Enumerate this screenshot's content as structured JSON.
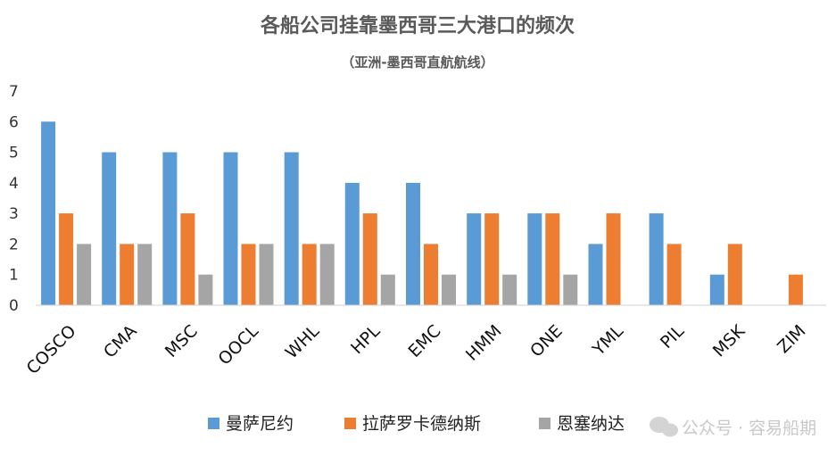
{
  "chart_data": {
    "type": "bar",
    "title": "各船公司挂靠墨西哥三大港口的频次",
    "subtitle": "（亚洲-墨西哥直航航线）",
    "categories": [
      "COSCO",
      "CMA",
      "MSC",
      "OOCL",
      "WHL",
      "HPL",
      "EMC",
      "HMM",
      "ONE",
      "YML",
      "PIL",
      "MSK",
      "ZIM"
    ],
    "series": [
      {
        "name": "曼萨尼约",
        "color": "#5b9bd5",
        "values": [
          6,
          5,
          5,
          5,
          5,
          4,
          4,
          3,
          3,
          2,
          3,
          1,
          0
        ]
      },
      {
        "name": "拉萨罗卡德纳斯",
        "color": "#ed7d31",
        "values": [
          3,
          2,
          3,
          2,
          2,
          3,
          2,
          3,
          3,
          3,
          2,
          2,
          1
        ]
      },
      {
        "name": "恩塞纳达",
        "color": "#a5a5a5",
        "values": [
          2,
          2,
          1,
          2,
          2,
          1,
          1,
          1,
          1,
          0,
          0,
          0,
          0
        ]
      }
    ],
    "ylim": [
      0,
      7
    ],
    "yticks": [
      0,
      1,
      2,
      3,
      4,
      5,
      6,
      7
    ],
    "grid": false,
    "legend_position": "bottom"
  },
  "watermark": "公众号 · 容易船期"
}
